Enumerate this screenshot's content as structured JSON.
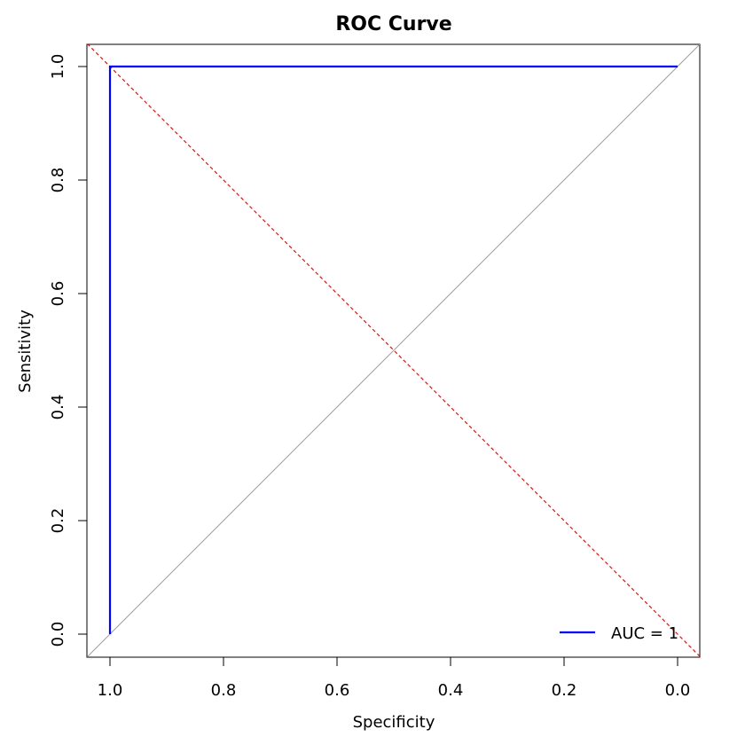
{
  "chart_data": {
    "type": "line",
    "title": "ROC Curve",
    "xlabel": "Specificity",
    "ylabel": "Sensitivity",
    "xlim": [
      1.0,
      0.0
    ],
    "ylim": [
      0.0,
      1.0
    ],
    "x_reversed": true,
    "x_ticks": [
      "1.0",
      "0.8",
      "0.6",
      "0.4",
      "0.2",
      "0.0"
    ],
    "y_ticks": [
      "0.0",
      "0.2",
      "0.4",
      "0.6",
      "0.8",
      "1.0"
    ],
    "grid": false,
    "series": [
      {
        "name": "AUC = 1",
        "color": "#0000ff",
        "points": [
          {
            "specificity": 1.0,
            "sensitivity": 0.0
          },
          {
            "specificity": 1.0,
            "sensitivity": 1.0
          },
          {
            "specificity": 0.0,
            "sensitivity": 1.0
          }
        ]
      }
    ],
    "reference_lines": [
      {
        "style": "solid",
        "color": "#a0a0a0",
        "points": [
          {
            "specificity": 1.0,
            "sensitivity": 0.0
          },
          {
            "specificity": 0.0,
            "sensitivity": 1.0
          }
        ]
      },
      {
        "style": "dashed",
        "color": "#ff0000",
        "points": [
          {
            "specificity": 1.0,
            "sensitivity": 1.0
          },
          {
            "specificity": 0.0,
            "sensitivity": 0.0
          }
        ]
      }
    ],
    "legend": {
      "position": "bottom-right",
      "entries": [
        "AUC = 1"
      ]
    }
  }
}
